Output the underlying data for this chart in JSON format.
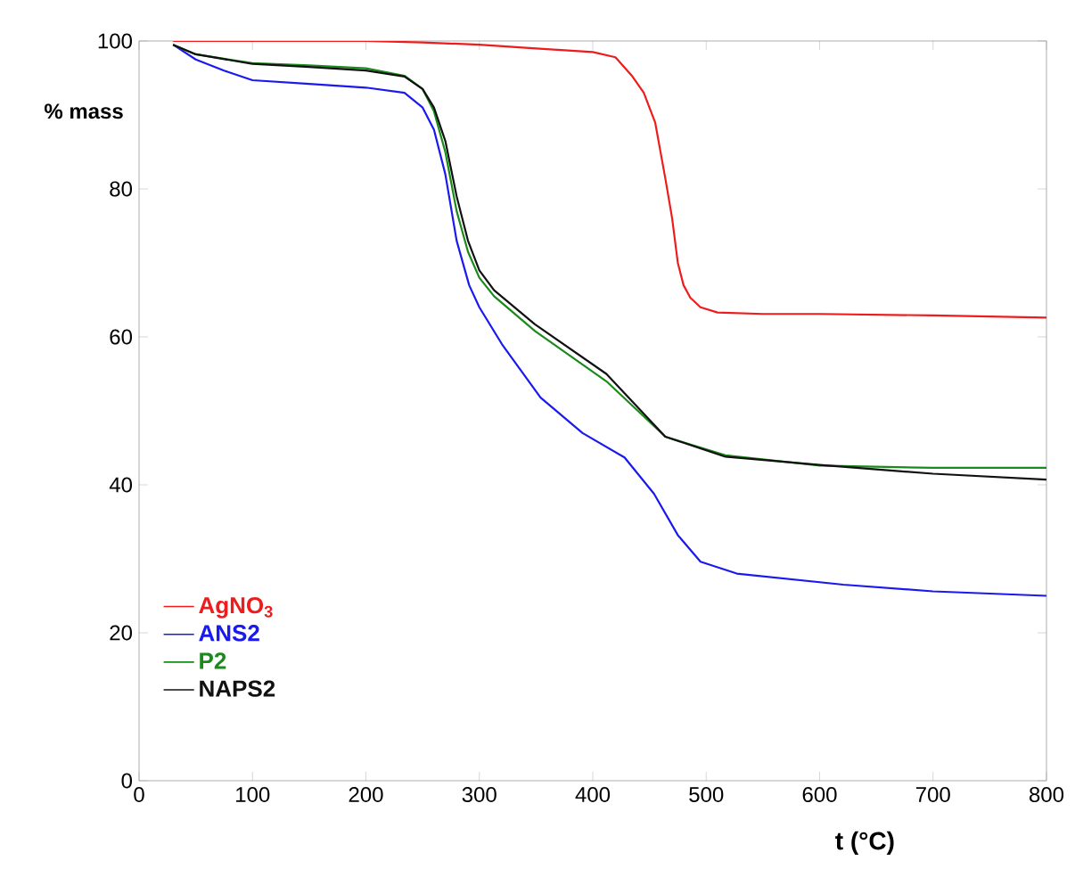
{
  "chart_data": {
    "type": "line",
    "xlabel": "t (°C)",
    "ylabel": "% mass",
    "xlim": [
      0,
      800
    ],
    "ylim": [
      0,
      100
    ],
    "xticks": [
      0,
      100,
      200,
      300,
      400,
      500,
      600,
      700,
      800
    ],
    "yticks": [
      0,
      20,
      40,
      60,
      80,
      100
    ],
    "legend": "bottom left",
    "grid": false,
    "marker": "none",
    "line_style": "solid",
    "series": [
      {
        "name": "AgNO$_{3}$",
        "color": "#ee1c1c",
        "x": [
          30,
          100,
          200,
          250,
          300,
          350,
          400,
          420,
          435,
          445,
          455,
          464,
          470,
          475,
          480,
          486,
          495,
          510,
          550,
          600,
          700,
          800
        ],
        "values": [
          100,
          100,
          100,
          99.8,
          99.5,
          99,
          98.5,
          97.8,
          95.2,
          93,
          89,
          81.4,
          76,
          70,
          67,
          65.3,
          64,
          63.3,
          63.1,
          63.1,
          62.9,
          62.6
        ]
      },
      {
        "name": "ANS2",
        "color": "#1a1aee",
        "x": [
          30,
          50,
          75,
          100,
          150,
          200,
          234,
          250,
          260,
          270,
          280,
          291,
          300,
          320,
          354,
          391,
          428,
          454,
          475,
          495,
          527,
          621,
          700,
          800
        ],
        "values": [
          99.5,
          97.5,
          96,
          94.7,
          94.2,
          93.7,
          93,
          91,
          88,
          82,
          73,
          67,
          64,
          59,
          51.8,
          47,
          43.7,
          38.8,
          33.2,
          29.6,
          28,
          26.5,
          25.6,
          25
        ]
      },
      {
        "name": "P2",
        "color": "#1a8a1a",
        "x": [
          30,
          50,
          100,
          150,
          200,
          234,
          250,
          260,
          270,
          280,
          290,
          300,
          313,
          349,
          412,
          464,
          517,
          600,
          700,
          800
        ],
        "values": [
          99.5,
          98.2,
          97,
          96.7,
          96.3,
          95.3,
          93.5,
          90.5,
          85,
          77,
          71.5,
          68,
          65.5,
          60.8,
          54,
          46.5,
          44,
          42.6,
          42.3,
          42.3
        ]
      },
      {
        "name": "NAPS2",
        "color": "#111111",
        "x": [
          30,
          50,
          100,
          150,
          200,
          234,
          250,
          260,
          270,
          280,
          290,
          300,
          313,
          349,
          412,
          464,
          517,
          600,
          700,
          800
        ],
        "values": [
          99.5,
          98.2,
          96.9,
          96.5,
          96,
          95.2,
          93.5,
          91,
          86.5,
          79,
          73,
          69,
          66.3,
          61.7,
          55,
          46.5,
          43.8,
          42.7,
          41.5,
          40.7
        ]
      }
    ]
  }
}
